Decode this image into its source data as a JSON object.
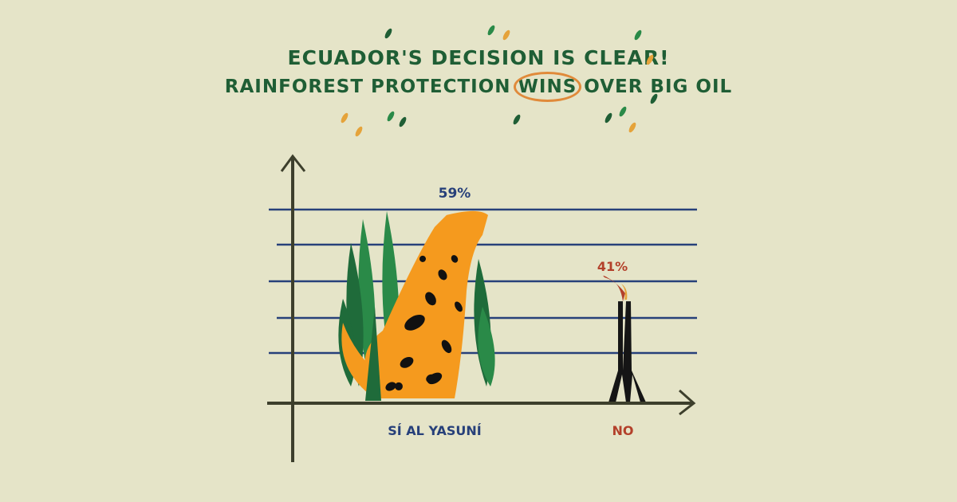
{
  "title_line1": "ECUADOR'S DECISION IS CLEAR!",
  "title_line2_pre": "RAINFOREST PROTECTION ",
  "title_line2_highlight": "WINS",
  "title_line2_post": " OVER BIG OIL",
  "chart_data": {
    "type": "bar",
    "title": "ECUADOR'S DECISION IS CLEAR! RAINFOREST PROTECTION WINS OVER BIG OIL",
    "categories": [
      "SÍ AL YASUNÍ",
      "NO"
    ],
    "values": [
      59,
      41
    ],
    "data_labels": [
      "59%",
      "41%"
    ],
    "ylim": [
      0,
      60
    ],
    "grid": true,
    "colors": {
      "si": "#f59a1e",
      "no": "#151515",
      "si_label": "#27407a",
      "no_label": "#b3402a",
      "grid": "#27407a",
      "axis": "#3d3f2c"
    }
  }
}
